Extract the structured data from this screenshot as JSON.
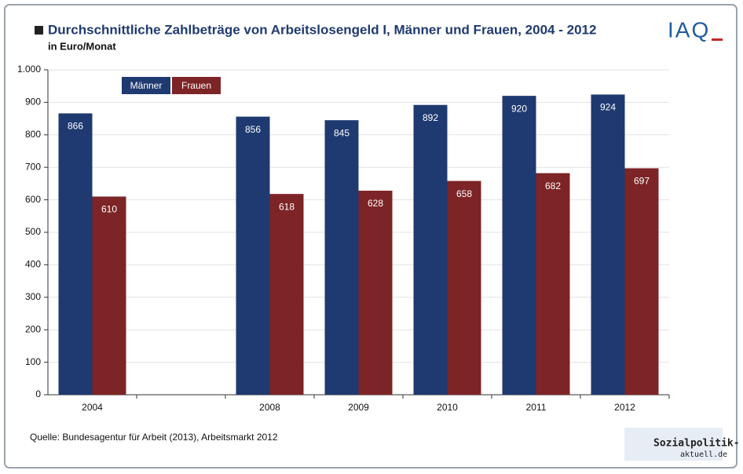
{
  "chart_data": {
    "type": "bar",
    "title": "Durchschnittliche Zahlbeträge von Arbeitslosengeld I, Männer und Frauen, 2004 - 2012",
    "subtitle": "in Euro/Monat",
    "source": "Quelle: Bundesagentur für Arbeit (2013), Arbeitsmarkt 2012",
    "logo": "IAQ",
    "watermark": [
      "Sozialpolitik-",
      "aktuell.de"
    ],
    "categories": [
      "2004",
      null,
      "2008",
      "2009",
      "2010",
      "2011",
      "2012"
    ],
    "series": [
      {
        "name": "Männer",
        "color": "#1f3a70",
        "values": [
          866,
          null,
          856,
          845,
          892,
          920,
          924
        ]
      },
      {
        "name": "Frauen",
        "color": "#7d2426",
        "values": [
          610,
          null,
          618,
          628,
          658,
          682,
          697
        ]
      }
    ],
    "ylim": [
      0,
      1000
    ],
    "yticks": [
      0,
      100,
      200,
      300,
      400,
      500,
      600,
      700,
      800,
      900,
      {
        "value": 1000,
        "label": "1.000"
      }
    ],
    "grid": true,
    "legend": "top-left"
  }
}
